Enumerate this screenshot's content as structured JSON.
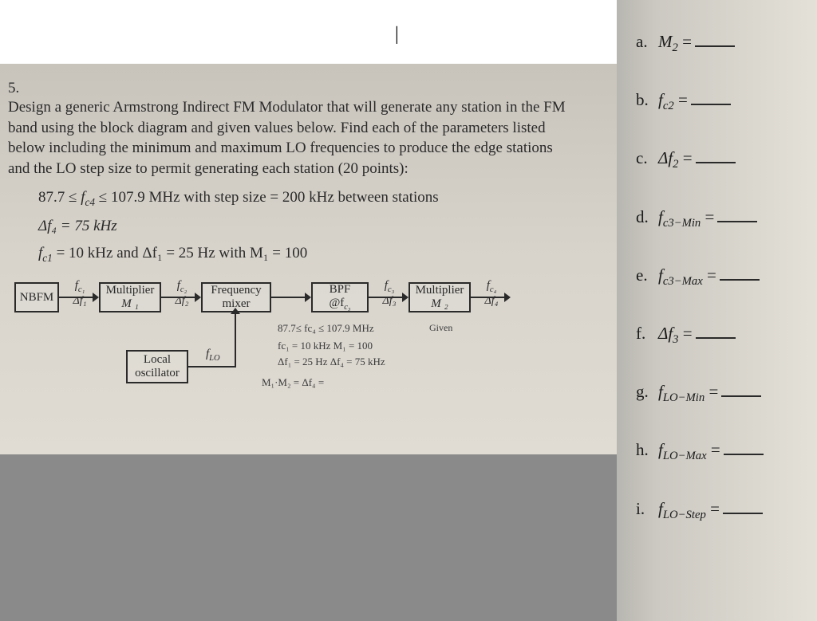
{
  "question": {
    "number": "5.",
    "text": "Design a generic Armstrong Indirect FM Modulator that will generate any station in the FM band using the block diagram and given values below. Find each of the parameters listed below including the minimum and maximum LO frequencies to produce the edge stations and the LO step size to permit generating each station (20 points):",
    "constraints": {
      "line1_pre": "87.7 ≤ ",
      "line1_var": "f",
      "line1_sub": "c4",
      "line1_post": " ≤ 107.9 MHz with step size = 200 kHz between stations",
      "line2_text": "Δf₄ = 75 kHz",
      "line3_text": "f",
      "line3_sub": "c1",
      "line3_post": " = 10 kHz and Δf₁ = 25 Hz with M₁ = 100"
    }
  },
  "diagram": {
    "blocks": {
      "nbfm": "NBFM",
      "mult1_top": "Multiplier",
      "mult1_bot": "M ₁",
      "mixer_top": "Frequency",
      "mixer_bot": "mixer",
      "bpf_top": "BPF",
      "bpf_bot": "@f",
      "bpf_sub": "c₃",
      "mult2_top": "Multiplier",
      "mult2_bot": "M ₂",
      "lo_top": "Local",
      "lo_bot": "oscillator"
    },
    "arrows": {
      "a1_top": "f",
      "a1_top_sub": "c₁",
      "a1_bot": "Δf₁",
      "a2_top": "f",
      "a2_top_sub": "c₂",
      "a2_bot": "Δf₂",
      "a3_top": "f",
      "a3_top_sub": "c₃",
      "a3_bot": "Δf₃",
      "a4_top": "f",
      "a4_top_sub": "c₄",
      "a4_bot": "Δf₄",
      "lo_label": "f",
      "lo_sub": "LO"
    },
    "handwriting": {
      "h1": "87.7≤ fc₄ ≤ 107.9 MHz",
      "h2": "Given",
      "h3": "fc₁ = 10 kHz   M₁ = 100",
      "h4": "Δf₁ = 25 Hz   Δf₄ = 75 kHz",
      "h5": "M₁·M₂ = Δf₄ ="
    }
  },
  "answers": [
    {
      "label": "a.",
      "var": "M",
      "sub": "2",
      "suffix": " ="
    },
    {
      "label": "b.",
      "var": "f",
      "sub": "c2",
      "suffix": " ="
    },
    {
      "label": "c.",
      "var": "Δf",
      "sub": "2",
      "suffix": " ="
    },
    {
      "label": "d.",
      "var": "f",
      "sub": "c3−Min",
      "suffix": " ="
    },
    {
      "label": "e.",
      "var": "f",
      "sub": "c3−Max",
      "suffix": " ="
    },
    {
      "label": "f.",
      "var": "Δf",
      "sub": "3",
      "suffix": " ="
    },
    {
      "label": "g.",
      "var": "f",
      "sub": "LO−Min",
      "suffix": " ="
    },
    {
      "label": "h.",
      "var": "f",
      "sub": "LO−Max",
      "suffix": " ="
    },
    {
      "label": "i.",
      "var": "f",
      "sub": "LO−Step",
      "suffix": " ="
    }
  ],
  "colors": {
    "page_bg": "#d8d4cc",
    "right_bg": "#e4e1d8",
    "text": "#2a2a2a"
  }
}
